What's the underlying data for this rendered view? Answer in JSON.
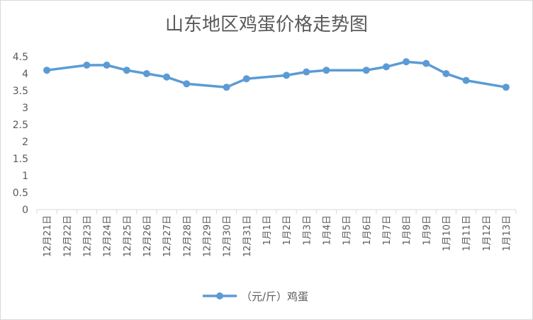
{
  "chart_data": {
    "type": "line",
    "title": "山东地区鸡蛋价格走势图",
    "categories": [
      "12月21日",
      "12月22日",
      "12月23日",
      "12月24日",
      "12月25日",
      "12月26日",
      "12月27日",
      "12月28日",
      "12月29日",
      "12月30日",
      "12月31日",
      "1月1日",
      "1月2日",
      "1月3日",
      "1月4日",
      "1月5日",
      "1月6日",
      "1月7日",
      "1月8日",
      "1月9日",
      "1月10日",
      "1月11日",
      "1月12日",
      "1月13日"
    ],
    "series": [
      {
        "name": "（元/斤）鸡蛋",
        "values": [
          4.1,
          null,
          4.25,
          4.25,
          4.1,
          4.0,
          3.9,
          3.7,
          null,
          3.6,
          3.85,
          null,
          3.95,
          4.05,
          4.1,
          null,
          4.1,
          4.2,
          4.35,
          4.3,
          4.0,
          3.8,
          null,
          3.6
        ],
        "color": "#5b9bd5"
      }
    ],
    "yticks": [
      "0",
      "0.5",
      "1",
      "1.5",
      "2",
      "2.5",
      "3",
      "3.5",
      "4",
      "4.5"
    ],
    "ylim": [
      0,
      4.5
    ],
    "grid": false,
    "legend_position": "bottom"
  }
}
